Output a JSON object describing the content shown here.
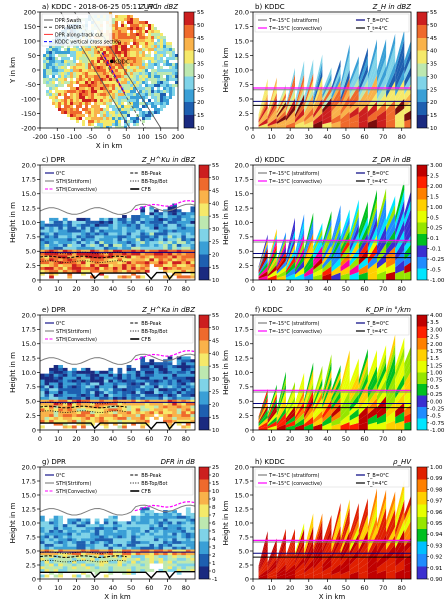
{
  "chart_data": [
    {
      "id": "a",
      "type": "heatmap",
      "title": "a) KDDC - 2018-06-25 05:11 UTC",
      "field": "Z_H in dBZ",
      "xlabel": "X in km",
      "ylabel": "Y in km",
      "xlim": [
        -200,
        200
      ],
      "ylim": [
        -200,
        200
      ],
      "xticks": [
        -200,
        -150,
        -100,
        -50,
        0,
        50,
        100,
        150,
        200
      ],
      "yticks": [
        -200,
        -150,
        -100,
        -50,
        0,
        50,
        100,
        150,
        200
      ],
      "colorbar": {
        "ticks": [
          10,
          15,
          20,
          25,
          30,
          35,
          40,
          45,
          50,
          55
        ],
        "range": [
          10,
          55
        ]
      },
      "legend": [
        "DPR Swath",
        "DPR NADIR",
        "DPR along-track cut",
        "KDDC vertical cross section"
      ],
      "annotation": "KDDC",
      "legend_position": "top-left"
    },
    {
      "id": "b",
      "type": "heatmap",
      "title": "b) KDDC",
      "field": "Z_H in dBZ",
      "xlabel": "",
      "ylabel": "Height in km",
      "xlim": [
        0,
        85
      ],
      "ylim": [
        0,
        20
      ],
      "xticks": [
        0,
        10,
        20,
        30,
        40,
        50,
        60,
        70,
        80
      ],
      "yticks": [
        0,
        2.5,
        5.0,
        7.5,
        10.0,
        12.5,
        15.0,
        17.5,
        20.0
      ],
      "colorbar": {
        "ticks": [
          10,
          15,
          20,
          25,
          30,
          35,
          40,
          45,
          50,
          55
        ],
        "range": [
          10,
          55
        ]
      },
      "legend": [
        "T=-15°C (stratiform)",
        "T=-15°C (convective)",
        "T_B=0°C",
        "T_t=4°C"
      ],
      "legend_position": "top"
    },
    {
      "id": "c",
      "type": "heatmap",
      "title": "c) DPR",
      "field": "Z_H^Ku in dBZ",
      "xlabel": "",
      "ylabel": "Height in m",
      "xlim": [
        0,
        85
      ],
      "ylim": [
        0,
        20
      ],
      "xticks": [
        0,
        10,
        20,
        30,
        40,
        50,
        60,
        70,
        80
      ],
      "yticks": [
        0,
        2.5,
        5.0,
        7.5,
        10.0,
        12.5,
        15.0,
        17.5,
        20.0
      ],
      "colorbar": {
        "ticks": [
          10,
          15,
          20,
          25,
          30,
          35,
          40,
          45,
          50,
          55
        ],
        "range": [
          10,
          55
        ]
      },
      "legend": [
        "0°C",
        "STH(Strtiform)",
        "STH(Convective)",
        "BB-Peak",
        "BB-Top/Bot",
        "CFB"
      ],
      "legend_position": "top"
    },
    {
      "id": "d",
      "type": "heatmap",
      "title": "d) KDDC",
      "field": "Z_DR in dB",
      "xlabel": "",
      "ylabel": "Height in km",
      "xlim": [
        0,
        85
      ],
      "ylim": [
        0,
        20
      ],
      "xticks": [
        0,
        10,
        20,
        30,
        40,
        50,
        60,
        70,
        80
      ],
      "yticks": [
        0,
        2.5,
        5.0,
        7.5,
        10.0,
        12.5,
        15.0,
        17.5,
        20.0
      ],
      "colorbar": {
        "ticks": [
          -1.0,
          -0.5,
          -0.25,
          -0.1,
          0.1,
          0.25,
          0.5,
          1.0,
          1.5,
          2.0,
          2.5,
          3.0
        ],
        "range": [
          -1.0,
          3.0
        ]
      },
      "legend": [
        "T=-15°C (stratiform)",
        "T=-15°C (convective)",
        "T_B=0°C",
        "T_t=4°C"
      ],
      "legend_position": "top"
    },
    {
      "id": "e",
      "type": "heatmap",
      "title": "e) DPR",
      "field": "Z_H^Ka in dBZ",
      "xlabel": "",
      "ylabel": "Height in m",
      "xlim": [
        0,
        85
      ],
      "ylim": [
        0,
        20
      ],
      "xticks": [
        0,
        10,
        20,
        30,
        40,
        50,
        60,
        70,
        80
      ],
      "yticks": [
        0,
        2.5,
        5.0,
        7.5,
        10.0,
        12.5,
        15.0,
        17.5,
        20.0
      ],
      "colorbar": {
        "ticks": [
          10,
          15,
          20,
          25,
          30,
          35,
          40,
          45,
          50,
          55
        ],
        "range": [
          10,
          55
        ]
      },
      "legend": [
        "0°C",
        "STH(Strtiform)",
        "STH(Convective)",
        "BB-Peak",
        "BB-Top/Bot",
        "CFB"
      ],
      "legend_position": "top"
    },
    {
      "id": "f",
      "type": "heatmap",
      "title": "f) KDDC",
      "field": "K_DP in °/km",
      "xlabel": "",
      "ylabel": "Height in km",
      "xlim": [
        0,
        85
      ],
      "ylim": [
        0,
        20
      ],
      "xticks": [
        0,
        10,
        20,
        30,
        40,
        50,
        60,
        70,
        80
      ],
      "yticks": [
        0,
        2.5,
        5.0,
        7.5,
        10.0,
        12.5,
        15.0,
        17.5,
        20.0
      ],
      "colorbar": {
        "ticks": [
          -1.0,
          -0.75,
          -0.5,
          -0.25,
          0.0,
          0.25,
          0.5,
          0.75,
          1.0,
          1.25,
          1.5,
          1.75,
          2.0,
          2.5,
          3.0,
          3.5,
          4.0
        ],
        "range": [
          -1.0,
          4.0
        ]
      },
      "legend": [
        "T=-15°C (stratiform)",
        "T=-15°C (convective)",
        "T_B=0°C",
        "T_t=4°C"
      ],
      "legend_position": "top"
    },
    {
      "id": "g",
      "type": "heatmap",
      "title": "g) DPR",
      "field": "DFR in dB",
      "xlabel": "X in km",
      "ylabel": "Height in m",
      "xlim": [
        0,
        85
      ],
      "ylim": [
        0,
        20
      ],
      "xticks": [
        0,
        10,
        20,
        30,
        40,
        50,
        60,
        70,
        80
      ],
      "yticks": [
        0,
        2.5,
        5.0,
        7.5,
        10.0,
        12.5,
        15.0,
        17.5,
        20.0
      ],
      "colorbar": {
        "ticks": [
          -1,
          0,
          1,
          2,
          3,
          4,
          5,
          6,
          7,
          8,
          9,
          10,
          15,
          20,
          25
        ],
        "range": [
          -1,
          25
        ]
      },
      "legend": [
        "0°C",
        "STH(Strtiform)",
        "STH(Convective)",
        "BB-Peak",
        "BB-Top/Bot",
        "CFB"
      ],
      "legend_position": "top"
    },
    {
      "id": "h",
      "type": "heatmap",
      "title": "h) KDDC",
      "field": "ρ_HV",
      "xlabel": "X in km",
      "ylabel": "Height in km",
      "xlim": [
        0,
        85
      ],
      "ylim": [
        0,
        20
      ],
      "xticks": [
        0,
        10,
        20,
        30,
        40,
        50,
        60,
        70,
        80
      ],
      "yticks": [
        0,
        2.5,
        5.0,
        7.5,
        10.0,
        12.5,
        15.0,
        17.5,
        20.0
      ],
      "colorbar": {
        "ticks": [
          0.9,
          0.91,
          0.92,
          0.93,
          0.94,
          0.95,
          0.96,
          0.97,
          0.98,
          0.99,
          1.0
        ],
        "range": [
          0.9,
          1.0
        ]
      },
      "legend": [
        "T=-15°C (stratiform)",
        "T=-15°C (convective)",
        "T_B=0°C",
        "T_t=4°C"
      ],
      "legend_position": "top"
    }
  ],
  "colors": {
    "stratiform_line": "#7f7f7f",
    "convective_line": "#ff00ff",
    "zero_deg_line": "#000080",
    "four_deg_line": "#000000",
    "swath_line": "#555555",
    "nadir_line": "#444444",
    "cut_line": "#ff3030",
    "cross_section_line": "#0000ff"
  }
}
